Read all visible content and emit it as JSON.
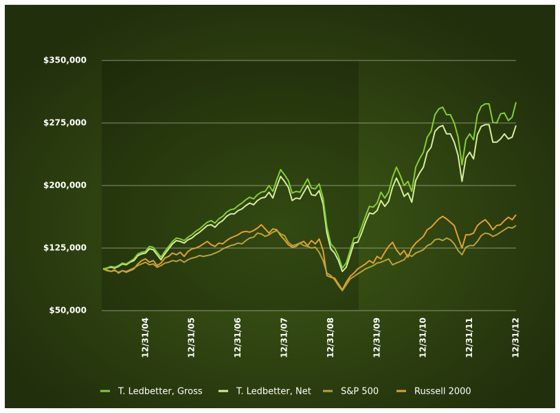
{
  "chart_data": {
    "type": "line",
    "categories": [
      null,
      null,
      null,
      null,
      null,
      null,
      null,
      null,
      null,
      null,
      null,
      "12/31/04",
      null,
      null,
      null,
      null,
      null,
      null,
      null,
      null,
      null,
      null,
      null,
      "12/31/05",
      null,
      null,
      null,
      null,
      null,
      null,
      null,
      null,
      null,
      null,
      null,
      "12/31/06",
      null,
      null,
      null,
      null,
      null,
      null,
      null,
      null,
      null,
      null,
      null,
      "12/31/07",
      null,
      null,
      null,
      null,
      null,
      null,
      null,
      null,
      null,
      null,
      null,
      "12/31/08",
      null,
      null,
      null,
      null,
      null,
      null,
      null,
      null,
      null,
      null,
      null,
      "12/31/09",
      null,
      null,
      null,
      null,
      null,
      null,
      null,
      null,
      null,
      null,
      null,
      "12/31/10",
      null,
      null,
      null,
      null,
      null,
      null,
      null,
      null,
      null,
      null,
      null,
      "12/31/11",
      null,
      null,
      null,
      null,
      null,
      null,
      null,
      null,
      null,
      null,
      null,
      "12/31/12"
    ],
    "series": [
      {
        "name": "T. Ledbetter, Gross",
        "color": "#86cf2f",
        "values": [
          100000,
          101000,
          103000,
          102000,
          104000,
          107000,
          106000,
          109000,
          112000,
          118000,
          120000,
          121000,
          127000,
          126000,
          120000,
          114000,
          121000,
          127000,
          133000,
          137000,
          136000,
          134000,
          138000,
          141000,
          145000,
          148000,
          152000,
          156000,
          158000,
          155000,
          160000,
          163000,
          168000,
          171000,
          172000,
          176000,
          179000,
          183000,
          186000,
          184000,
          189000,
          192000,
          193000,
          200000,
          193000,
          207000,
          219000,
          213000,
          206000,
          191000,
          193000,
          192000,
          200000,
          208000,
          197000,
          196000,
          202000,
          185000,
          150000,
          130000,
          125000,
          115000,
          101000,
          107000,
          122000,
          137000,
          138000,
          150000,
          163000,
          175000,
          174000,
          179000,
          192000,
          185000,
          192000,
          210000,
          222000,
          212000,
          200000,
          205000,
          193000,
          222000,
          232000,
          240000,
          258000,
          265000,
          285000,
          292000,
          294000,
          285000,
          285000,
          275000,
          258000,
          225000,
          255000,
          262000,
          255000,
          285000,
          295000,
          298000,
          298000,
          276000,
          275000,
          286000,
          287000,
          278000,
          282000,
          300000
        ]
      },
      {
        "name": "T. Ledbetter, Net",
        "color": "#d6efa0",
        "values": [
          100000,
          101000,
          102000,
          101000,
          103000,
          106000,
          105000,
          108000,
          110000,
          116000,
          118000,
          119000,
          124000,
          123000,
          117000,
          111000,
          118000,
          124000,
          130000,
          134000,
          133000,
          131000,
          135000,
          137000,
          141000,
          144000,
          148000,
          152000,
          153000,
          150000,
          155000,
          158000,
          163000,
          166000,
          166000,
          170000,
          172000,
          176000,
          179000,
          177000,
          182000,
          185000,
          186000,
          192000,
          185000,
          199000,
          211000,
          205000,
          198000,
          182000,
          185000,
          184000,
          192000,
          200000,
          189000,
          188000,
          194000,
          178000,
          143000,
          124000,
          119000,
          110000,
          97000,
          102000,
          116000,
          131000,
          132000,
          143000,
          156000,
          167000,
          166000,
          170000,
          182000,
          175000,
          181000,
          198000,
          209000,
          199000,
          187000,
          191000,
          180000,
          206000,
          215000,
          222000,
          240000,
          246000,
          265000,
          270000,
          272000,
          262000,
          262000,
          252000,
          236000,
          205000,
          233000,
          240000,
          232000,
          261000,
          271000,
          273000,
          273000,
          252000,
          252000,
          256000,
          262000,
          256000,
          258000,
          272000
        ]
      },
      {
        "name": "S&P 500",
        "color": "#b9a33a",
        "values": [
          100000,
          99000,
          97000,
          98000,
          96000,
          98000,
          97000,
          99000,
          101000,
          104000,
          106000,
          108000,
          105000,
          106000,
          102000,
          104000,
          107000,
          108000,
          110000,
          109000,
          111000,
          108000,
          111000,
          113000,
          114000,
          116000,
          115000,
          116000,
          117000,
          119000,
          121000,
          124000,
          126000,
          128000,
          129000,
          131000,
          130000,
          134000,
          137000,
          138000,
          143000,
          142000,
          139000,
          141000,
          144000,
          146000,
          142000,
          140000,
          132000,
          128000,
          129000,
          131000,
          128000,
          127000,
          125000,
          126000,
          120000,
          110000,
          95000,
          92000,
          87000,
          80000,
          74000,
          81000,
          88000,
          91000,
          94000,
          97000,
          100000,
          102000,
          104000,
          107000,
          108000,
          110000,
          112000,
          105000,
          107000,
          109000,
          111000,
          117000,
          115000,
          119000,
          121000,
          123000,
          128000,
          130000,
          135000,
          136000,
          134000,
          137000,
          135000,
          130000,
          122000,
          117000,
          126000,
          128000,
          128000,
          133000,
          140000,
          143000,
          142000,
          139000,
          141000,
          144000,
          147000,
          150000,
          149000,
          152000
        ]
      },
      {
        "name": "Russell 2000",
        "color": "#e4a22c",
        "values": [
          100000,
          98000,
          97000,
          99000,
          95000,
          98000,
          96000,
          98000,
          100000,
          106000,
          110000,
          112000,
          108000,
          110000,
          104000,
          107000,
          113000,
          115000,
          119000,
          117000,
          120000,
          115000,
          121000,
          124000,
          125000,
          127000,
          130000,
          133000,
          129000,
          127000,
          131000,
          130000,
          134000,
          137000,
          139000,
          141000,
          144000,
          145000,
          144000,
          146000,
          149000,
          153000,
          148000,
          143000,
          148000,
          147000,
          140000,
          135000,
          129000,
          126000,
          127000,
          131000,
          133000,
          128000,
          134000,
          130000,
          136000,
          122000,
          92000,
          90000,
          89000,
          82000,
          75000,
          84000,
          91000,
          95000,
          100000,
          103000,
          106000,
          110000,
          107000,
          115000,
          112000,
          120000,
          127000,
          132000,
          123000,
          117000,
          122000,
          114000,
          125000,
          131000,
          135000,
          139000,
          147000,
          150000,
          155000,
          160000,
          163000,
          160000,
          156000,
          152000,
          138000,
          125000,
          141000,
          141000,
          143000,
          152000,
          156000,
          159000,
          154000,
          147000,
          152000,
          153000,
          158000,
          162000,
          159000,
          165000
        ]
      }
    ],
    "ylim": [
      50000,
      350000
    ],
    "yticks": [
      {
        "value": 50000,
        "label": "$50,000"
      },
      {
        "value": 125000,
        "label": "$125,000"
      },
      {
        "value": 200000,
        "label": "$200,000"
      },
      {
        "value": 275000,
        "label": "$275,000"
      },
      {
        "value": 350000,
        "label": "$350,000"
      }
    ],
    "grid": true
  }
}
